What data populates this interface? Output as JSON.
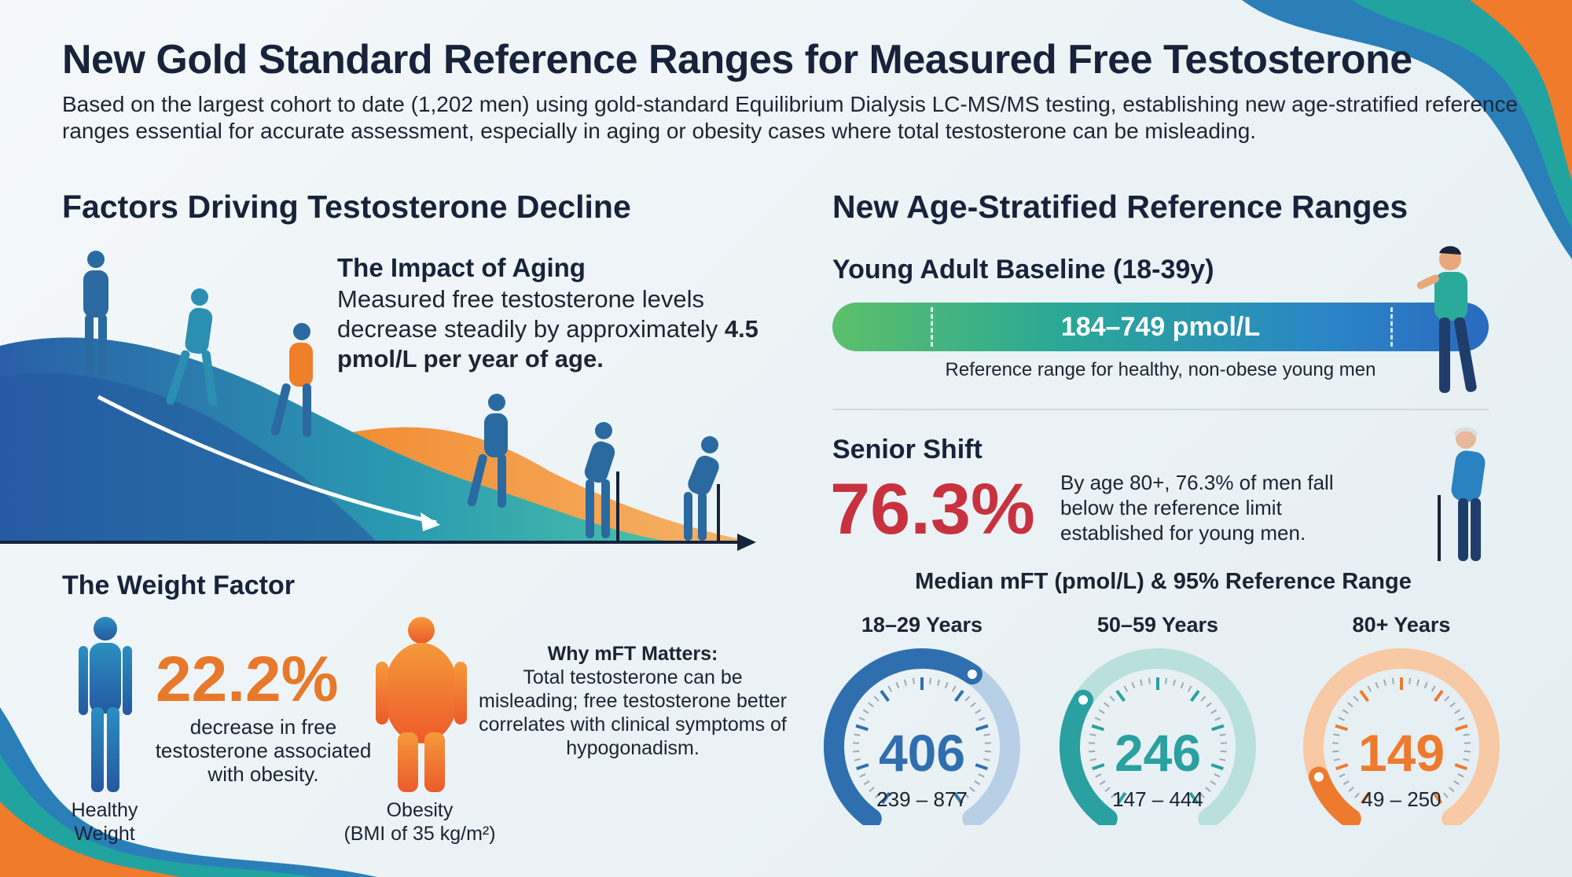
{
  "header": {
    "title": "New Gold Standard Reference Ranges for Measured Free Testosterone",
    "subtitle": "Based on the largest cohort to date (1,202 men) using gold-standard Equilibrium Dialysis LC-MS/MS testing, establishing new age-stratified reference ranges essential for accurate assessment, especially in aging or obesity cases where total testosterone can be misleading."
  },
  "left": {
    "heading": "Factors Driving Testosterone Decline",
    "aging": {
      "title": "The Impact of Aging",
      "text": "Measured free testosterone levels decrease steadily by approximately",
      "highlight": "4.5 pmol/L per year of age."
    },
    "weight": {
      "heading": "The Weight Factor",
      "percent": "22.2%",
      "percent_caption": "decrease in free testosterone associated with obesity.",
      "healthy_label": "Healthy Weight",
      "obesity_label": "Obesity",
      "obesity_sub": "(BMI of 35 kg/m²)",
      "why_title": "Why mFT Matters:",
      "why_text": "Total testosterone can be misleading; free testosterone better correlates with clinical symptoms of hypogonadism."
    }
  },
  "right": {
    "heading": "New Age-Stratified Reference Ranges",
    "baseline": {
      "title": "Young Adult Baseline (18-39y)",
      "range": "184–749 pmol/L",
      "caption": "Reference range for healthy, non-obese young men"
    },
    "senior": {
      "title": "Senior Shift",
      "percent": "76.3%",
      "text": "By age 80+, 76.3% of men fall below the reference limit established for young men."
    },
    "gauges_title": "Median mFT (pmol/L) & 95% Reference Range",
    "gauges": [
      {
        "label": "18–29 Years",
        "median": "406",
        "range": "239 – 877",
        "fill": 0.62,
        "color": "#2f6fb0",
        "light": "#b8d0e6"
      },
      {
        "label": "50–59 Years",
        "median": "246",
        "range": "147 – 444",
        "fill": 0.3,
        "color": "#2aa0a0",
        "light": "#b9e0dd"
      },
      {
        "label": "80+ Years",
        "median": "149",
        "range": "49 – 250",
        "fill": 0.12,
        "color": "#ee7a2e",
        "light": "#f7c9a4"
      }
    ]
  },
  "colors": {
    "orange": "#e8782a",
    "red": "#c8323f",
    "navy": "#16233a",
    "blue": "#2f6fb0",
    "teal": "#2aa0a0"
  }
}
